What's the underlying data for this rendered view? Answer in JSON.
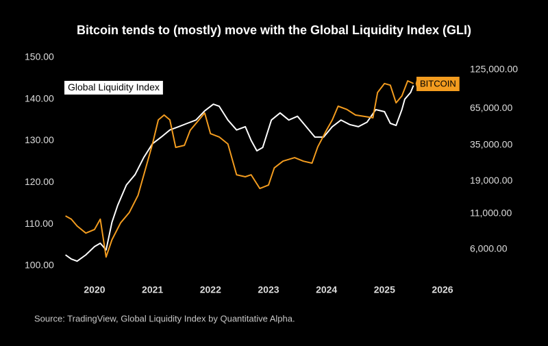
{
  "chart_data": {
    "type": "line",
    "title": "Bitcoin tends to (mostly) move with the Global Liquidity Index (GLI)",
    "source": "Source: TradingView, Global Liquidity Index by Quantitative Alpha.",
    "background": "#000000",
    "xlim": [
      2019.41,
      2026.26
    ],
    "xticks": [
      2020,
      2021,
      2022,
      2023,
      2024,
      2025,
      2026
    ],
    "ylim": [
      98,
      150
    ],
    "yticks": [
      {
        "value": 100,
        "label": "100.00"
      },
      {
        "value": 110,
        "label": "110.00"
      },
      {
        "value": 120,
        "label": "120.00"
      },
      {
        "value": 130,
        "label": "130.00"
      },
      {
        "value": 140,
        "label": "140.00"
      },
      {
        "value": 150,
        "label": "150.00"
      }
    ],
    "y2lim": [
      3950,
      154000
    ],
    "y2scale": "log",
    "y2ticks": [
      {
        "value": 6000,
        "label": "6,000.00"
      },
      {
        "value": 11000,
        "label": "11,000.00"
      },
      {
        "value": 19000,
        "label": "19,000.00"
      },
      {
        "value": 35000,
        "label": "35,000.00"
      },
      {
        "value": 65000,
        "label": "65,000.00"
      },
      {
        "value": 125000,
        "label": "125,000.00"
      }
    ],
    "series": [
      {
        "name": "Global Liquidity Index",
        "color": "#ffffff",
        "label_style": "box-left",
        "x": [
          2019.5,
          2019.6,
          2019.7,
          2019.85,
          2020.0,
          2020.1,
          2020.2,
          2020.3,
          2020.4,
          2020.55,
          2020.7,
          2020.85,
          2021.0,
          2021.15,
          2021.3,
          2021.45,
          2021.6,
          2021.75,
          2021.9,
          2022.05,
          2022.15,
          2022.3,
          2022.45,
          2022.6,
          2022.7,
          2022.8,
          2022.9,
          2023.05,
          2023.2,
          2023.35,
          2023.5,
          2023.65,
          2023.8,
          2023.95,
          2024.1,
          2024.25,
          2024.4,
          2024.55,
          2024.7,
          2024.85,
          2025.0,
          2025.1,
          2025.2,
          2025.3,
          2025.35,
          2025.45,
          2025.5
        ],
        "values": [
          102.6,
          101.6,
          101.1,
          102.6,
          104.6,
          105.4,
          103.8,
          110.4,
          114.5,
          119.4,
          121.9,
          126,
          129.3,
          130.9,
          132.6,
          133.4,
          134.2,
          135,
          137.2,
          138.8,
          138.3,
          135,
          132.6,
          133.4,
          130.1,
          127.6,
          128.4,
          135,
          136.7,
          135,
          135.9,
          133.4,
          130.9,
          130.9,
          133.4,
          135,
          133.9,
          133.4,
          134.5,
          137.5,
          137,
          134.2,
          133.7,
          137.5,
          140,
          141.6,
          143.3
        ]
      },
      {
        "name": "BITCOIN",
        "color": "#f39c1f",
        "axis": "y2",
        "label_style": "tag-right",
        "x": [
          2019.5,
          2019.6,
          2019.7,
          2019.85,
          2020.0,
          2020.1,
          2020.2,
          2020.3,
          2020.45,
          2020.6,
          2020.75,
          2020.9,
          2021.0,
          2021.1,
          2021.2,
          2021.3,
          2021.4,
          2021.55,
          2021.65,
          2021.8,
          2021.9,
          2022.0,
          2022.15,
          2022.3,
          2022.45,
          2022.6,
          2022.7,
          2022.85,
          2023.0,
          2023.1,
          2023.25,
          2023.45,
          2023.6,
          2023.75,
          2023.85,
          2024.0,
          2024.1,
          2024.2,
          2024.35,
          2024.5,
          2024.65,
          2024.8,
          2024.88,
          2025.0,
          2025.1,
          2025.2,
          2025.3,
          2025.4,
          2025.5
        ],
        "values": [
          10570,
          10000,
          8900,
          7900,
          8400,
          10000,
          5270,
          7050,
          9400,
          11200,
          14960,
          25200,
          35700,
          53600,
          58200,
          53600,
          33700,
          34900,
          45000,
          53600,
          60300,
          42500,
          40200,
          35700,
          21200,
          20500,
          21200,
          16800,
          17800,
          23800,
          26700,
          28300,
          26700,
          25800,
          34000,
          45000,
          53600,
          67600,
          64000,
          58200,
          56900,
          55600,
          85300,
          99200,
          96500,
          71600,
          80500,
          103800,
          99200
        ]
      }
    ]
  }
}
